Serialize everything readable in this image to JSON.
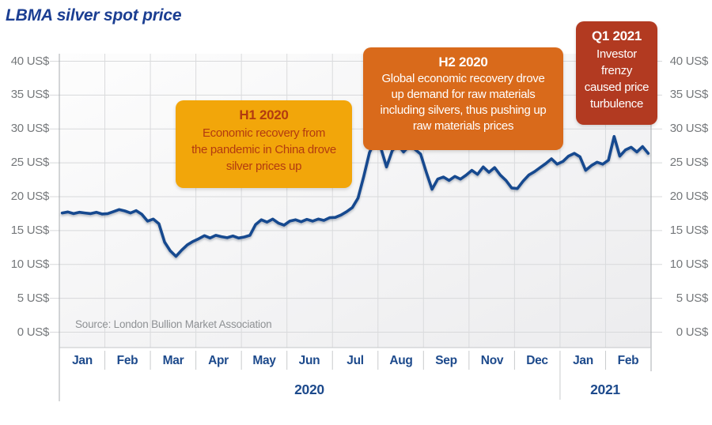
{
  "title": "LBMA silver spot price",
  "source_note": "Source: London Bullion Market Association",
  "colors": {
    "accent_navy": "#1d4a8c",
    "title_navy": "#1b3e92",
    "line_navy": "#17498f",
    "axis_text_gray": "#75787b",
    "gridline_gray": "#d8d9db",
    "amber_box_bg": "#f2a60a",
    "amber_box_text": "#b33b10",
    "orange_box_bg": "#d96a1b",
    "red_box_bg": "#b23a21"
  },
  "annotations": [
    {
      "heading": "H1 2020",
      "body_lines": [
        "Economic recovery from",
        "the pandemic in China drove",
        "silver prices up"
      ]
    },
    {
      "heading": "H2 2020",
      "body_lines": [
        "Global economic recovery drove",
        "up demand for raw materials",
        "including silvers, thus pushing up",
        "raw materials prices"
      ]
    },
    {
      "heading": "Q1 2021",
      "body_lines": [
        "Investor",
        "frenzy",
        "caused price",
        "turbulence"
      ]
    }
  ],
  "chart_data": {
    "type": "line",
    "title": "LBMA silver spot price",
    "unit": "US$",
    "ylim": [
      0,
      40
    ],
    "ytick_step": 5,
    "ytick_labels": [
      "0 US$",
      "5 US$",
      "10 US$",
      "15 US$",
      "20 US$",
      "25 US$",
      "30 US$",
      "35 US$",
      "40 US$"
    ],
    "x_labels": [
      "Jan",
      "Feb",
      "Mar",
      "Apr",
      "May",
      "Jun",
      "Jul",
      "Aug",
      "Sep",
      "Nov",
      "Dec",
      "Jan",
      "Feb"
    ],
    "year_labels": [
      "2020",
      "2021"
    ],
    "grid": true,
    "legend": "none",
    "line_color": "#17498f",
    "values": [
      17.6,
      17.75,
      17.5,
      17.7,
      17.6,
      17.5,
      17.7,
      17.45,
      17.5,
      17.8,
      18.1,
      17.9,
      17.6,
      17.95,
      17.4,
      16.4,
      16.7,
      16.0,
      13.3,
      12.0,
      11.2,
      12.1,
      12.9,
      13.4,
      13.8,
      14.25,
      13.9,
      14.3,
      14.1,
      13.95,
      14.2,
      13.9,
      14.05,
      14.3,
      15.9,
      16.6,
      16.25,
      16.7,
      16.1,
      15.8,
      16.4,
      16.6,
      16.3,
      16.65,
      16.4,
      16.7,
      16.5,
      16.9,
      16.95,
      17.3,
      17.8,
      18.4,
      19.8,
      23.0,
      26.5,
      28.3,
      27.2,
      24.4,
      26.8,
      27.7,
      26.6,
      27.5,
      27.0,
      26.3,
      23.6,
      21.1,
      22.6,
      22.9,
      22.4,
      23.0,
      22.6,
      23.2,
      23.9,
      23.3,
      24.4,
      23.6,
      24.3,
      23.2,
      22.4,
      21.3,
      21.2,
      22.3,
      23.2,
      23.7,
      24.3,
      24.9,
      25.6,
      24.8,
      25.2,
      26.0,
      26.4,
      25.9,
      23.9,
      24.6,
      25.1,
      24.8,
      25.4,
      28.9,
      26.0,
      26.9,
      27.3,
      26.6,
      27.4,
      26.4
    ]
  }
}
